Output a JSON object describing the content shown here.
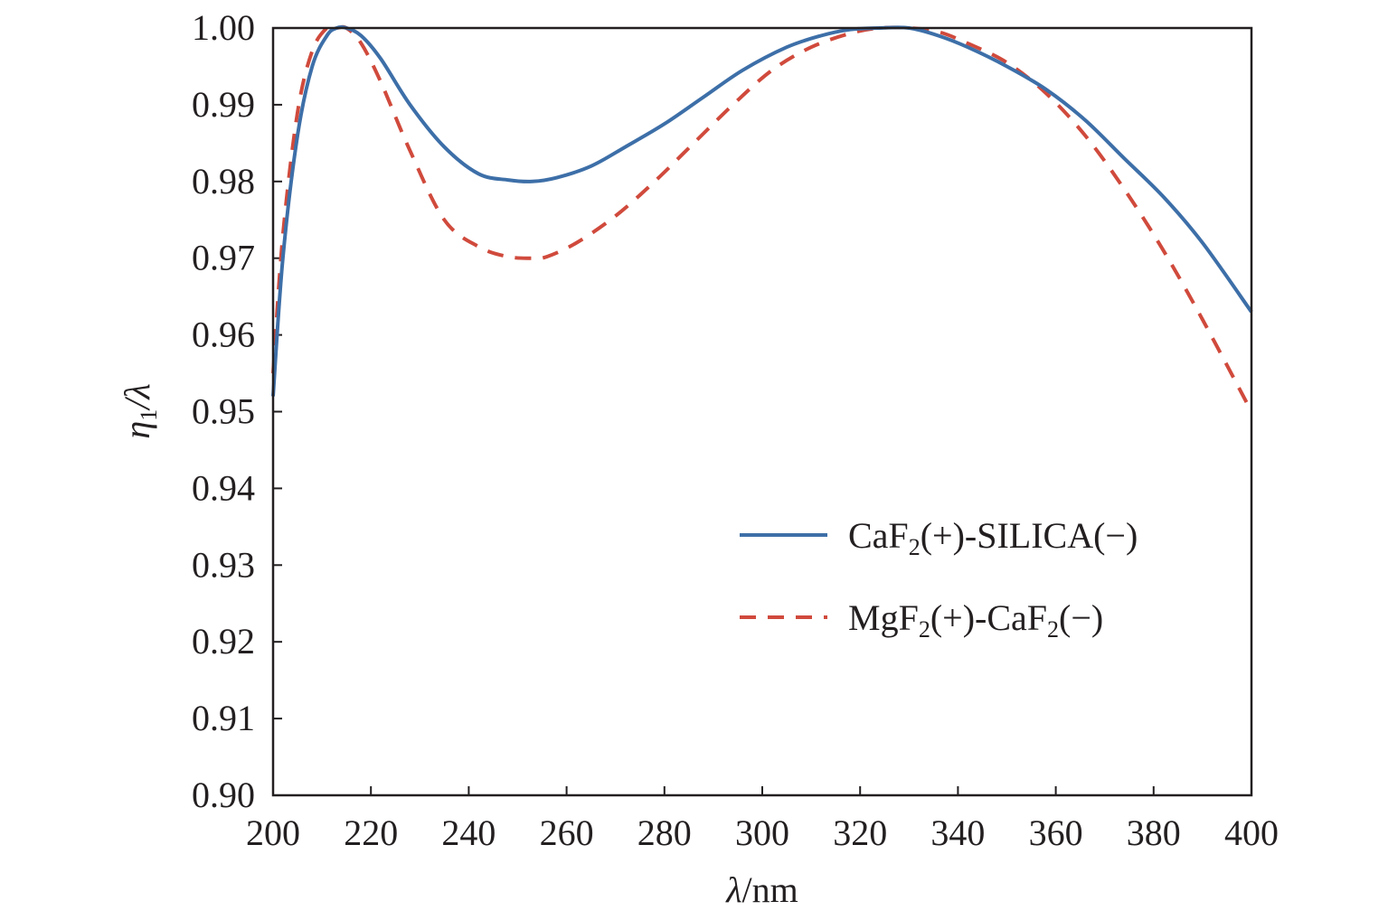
{
  "chart_data": {
    "type": "line",
    "xlabel": {
      "symbol": "λ",
      "unit": "/nm"
    },
    "ylabel": {
      "symbol": "η",
      "subscript": "1",
      "rest": "/λ"
    },
    "xlim": [
      200,
      400
    ],
    "ylim": [
      0.9,
      1.0
    ],
    "x_ticks": [
      "200",
      "220",
      "240",
      "260",
      "280",
      "300",
      "320",
      "340",
      "360",
      "380",
      "400"
    ],
    "y_ticks": [
      "0.90",
      "0.91",
      "0.92",
      "0.93",
      "0.94",
      "0.95",
      "0.96",
      "0.97",
      "0.98",
      "0.99",
      "1.00"
    ],
    "grid": false,
    "legend_position": "right",
    "series": [
      {
        "name": {
          "a": "CaF",
          "sub": "2",
          "b": "(+)-SILICA(−)"
        },
        "color": "#3d6fa8",
        "style": "solid",
        "x": [
          200,
          202,
          205,
          208,
          211,
          213,
          215,
          218,
          222,
          228,
          235,
          242,
          248,
          253,
          258,
          265,
          272,
          280,
          288,
          296,
          305,
          312,
          318,
          324,
          330,
          336,
          342,
          350,
          358,
          366,
          374,
          382,
          390,
          400
        ],
        "y": [
          0.952,
          0.97,
          0.986,
          0.995,
          0.999,
          1.0,
          1.0,
          0.999,
          0.996,
          0.99,
          0.9845,
          0.981,
          0.9802,
          0.98,
          0.9805,
          0.982,
          0.9845,
          0.9875,
          0.991,
          0.9945,
          0.9975,
          0.999,
          0.9998,
          1.0,
          1.0,
          0.999,
          0.9975,
          0.995,
          0.992,
          0.988,
          0.983,
          0.978,
          0.972,
          0.963
        ]
      },
      {
        "name": {
          "a": "MgF",
          "sub": "2",
          "b": "(+)-CaF",
          "sub2": "2",
          "c": "(−)"
        },
        "color": "#d04a3c",
        "style": "dashed",
        "x": [
          200,
          202,
          205,
          208,
          211,
          213,
          215,
          218,
          222,
          228,
          235,
          242,
          248,
          253,
          256,
          262,
          270,
          278,
          286,
          294,
          302,
          310,
          318,
          324,
          330,
          336,
          342,
          350,
          358,
          366,
          374,
          382,
          390,
          400
        ],
        "y": [
          0.955,
          0.973,
          0.989,
          0.997,
          1.0,
          1.0,
          1.0,
          0.998,
          0.993,
          0.984,
          0.975,
          0.9715,
          0.9702,
          0.97,
          0.9702,
          0.972,
          0.9755,
          0.98,
          0.985,
          0.99,
          0.9945,
          0.9975,
          0.9993,
          1.0,
          1.0,
          0.9995,
          0.998,
          0.9955,
          0.9915,
          0.986,
          0.979,
          0.971,
          0.962,
          0.95
        ]
      }
    ]
  }
}
